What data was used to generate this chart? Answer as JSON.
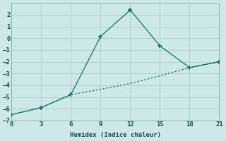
{
  "xlabel": "Humidex (Indice chaleur)",
  "ylabel": "",
  "background_color": "#cce8e8",
  "grid_color": "#b0d0d0",
  "line_color": "#1a6e64",
  "xlim": [
    0,
    21
  ],
  "ylim": [
    -7,
    3
  ],
  "xticks": [
    0,
    3,
    6,
    9,
    12,
    15,
    18,
    21
  ],
  "yticks": [
    -7,
    -6,
    -5,
    -4,
    -3,
    -2,
    -1,
    0,
    1,
    2
  ],
  "line1_x": [
    0,
    3,
    6,
    9,
    12,
    15,
    18,
    21
  ],
  "line1_y": [
    -6.5,
    -5.9,
    -4.8,
    0.15,
    2.4,
    -0.65,
    -2.5,
    -2.0
  ],
  "line2_x": [
    0,
    3,
    6,
    9,
    12,
    15,
    18,
    21
  ],
  "line2_y": [
    -6.5,
    -5.9,
    -4.8,
    -4.35,
    -3.85,
    -3.2,
    -2.5,
    -2.0
  ]
}
